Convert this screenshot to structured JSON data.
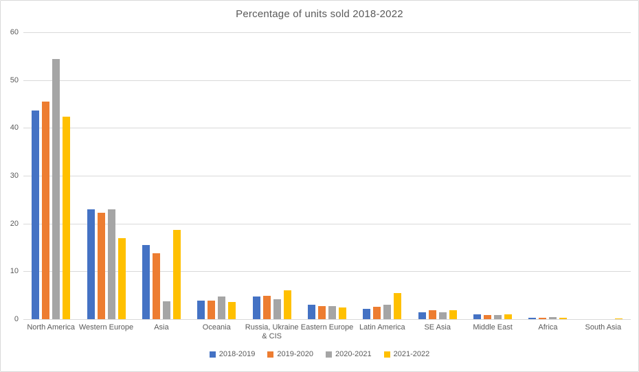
{
  "chart_data": {
    "type": "bar",
    "title": "Percentage of units sold 2018-2022",
    "categories": [
      "North America",
      "Western Europe",
      "Asia",
      "Oceania",
      "Russia, Ukraine & CIS",
      "Eastern Europe",
      "Latin America",
      "SE Asia",
      "Middle East",
      "Africa",
      "South Asia"
    ],
    "series": [
      {
        "name": "2018-2019",
        "color": "#4472C4",
        "values": [
          43.7,
          23.0,
          15.5,
          3.9,
          4.8,
          3.0,
          2.2,
          1.5,
          1.0,
          0.35,
          0
        ]
      },
      {
        "name": "2019-2020",
        "color": "#ED7D31",
        "values": [
          45.5,
          22.2,
          13.8,
          3.9,
          4.9,
          2.7,
          2.6,
          1.8,
          0.8,
          0.3,
          0
        ]
      },
      {
        "name": "2020-2021",
        "color": "#A5A5A5",
        "values": [
          54.4,
          23.0,
          3.7,
          4.7,
          4.1,
          2.8,
          3.0,
          1.5,
          0.85,
          0.45,
          0
        ]
      },
      {
        "name": "2021-2022",
        "color": "#FFC000",
        "values": [
          42.3,
          17.0,
          18.7,
          3.6,
          6.0,
          2.4,
          5.4,
          1.8,
          1.0,
          0.35,
          0.2
        ]
      }
    ],
    "xlabel": "",
    "ylabel": "",
    "ylim": [
      0,
      60
    ],
    "yticks": [
      0,
      10,
      20,
      30,
      40,
      50,
      60
    ],
    "grid": true,
    "legend_position": "bottom"
  },
  "colors": {
    "gridline": "#d9d9d9",
    "axis_text": "#595959",
    "chart_border": "#d9d9d9",
    "background": "#ffffff"
  }
}
